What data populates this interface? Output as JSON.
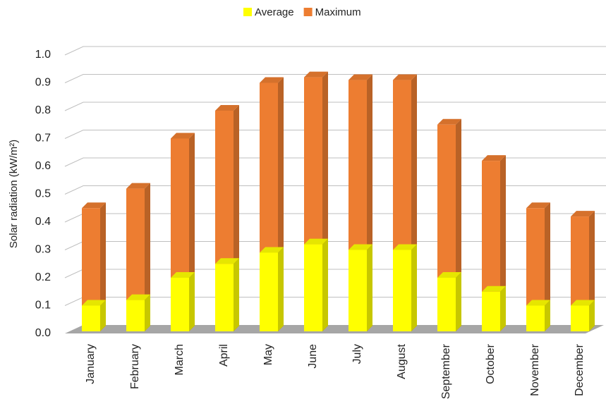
{
  "chart_data": {
    "type": "bar3d",
    "y_label": "Solar radiation (kW/m²)",
    "categories": [
      "January",
      "February",
      "March",
      "April",
      "May",
      "June",
      "July",
      "August",
      "September",
      "October",
      "November",
      "December"
    ],
    "series": [
      {
        "name": "Average",
        "color": "#FFFF00",
        "values": [
          0.1,
          0.12,
          0.2,
          0.25,
          0.29,
          0.32,
          0.3,
          0.3,
          0.2,
          0.15,
          0.1,
          0.1
        ]
      },
      {
        "name": "Maximum",
        "color": "#ED7D31",
        "values": [
          0.45,
          0.52,
          0.7,
          0.8,
          0.9,
          0.92,
          0.91,
          0.91,
          0.75,
          0.62,
          0.45,
          0.42
        ]
      }
    ],
    "ylim": [
      0,
      1
    ],
    "yticks": [
      {
        "value": 0,
        "label": "0.0"
      },
      {
        "value": 0.1,
        "label": "0.1"
      },
      {
        "value": 0.2,
        "label": "0.2"
      },
      {
        "value": 0.3,
        "label": "0.3"
      },
      {
        "value": 0.4,
        "label": "0.4"
      },
      {
        "value": 0.5,
        "label": "0.5"
      },
      {
        "value": 0.6,
        "label": "0.6"
      },
      {
        "value": 0.7,
        "label": "0.7"
      },
      {
        "value": 0.8,
        "label": "0.8"
      },
      {
        "value": 0.9,
        "label": "0.9"
      },
      {
        "value": 1,
        "label": "1.0"
      }
    ],
    "grid": true
  }
}
